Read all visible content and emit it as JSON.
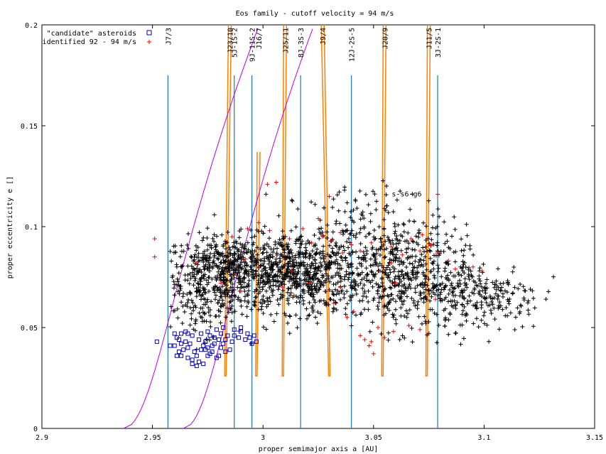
{
  "chart_data": {
    "type": "scatter",
    "title": "Eos family - cutoff velocity = 94 m/s",
    "xlabel": "proper semimajor axis a [AU]",
    "ylabel": "proper eccentricity e []",
    "xlim": [
      2.9,
      3.15
    ],
    "ylim": [
      0,
      0.2
    ],
    "x_ticks": [
      {
        "v": 2.9,
        "label": "2.9"
      },
      {
        "v": 2.95,
        "label": "2.95"
      },
      {
        "v": 3.0,
        "label": "3"
      },
      {
        "v": 3.05,
        "label": "3.05"
      },
      {
        "v": 3.1,
        "label": "3.1"
      },
      {
        "v": 3.15,
        "label": "3.15"
      }
    ],
    "y_ticks": [
      {
        "v": 0,
        "label": "0"
      },
      {
        "v": 0.05,
        "label": "0.05"
      },
      {
        "v": 0.1,
        "label": "0.1"
      },
      {
        "v": 0.15,
        "label": "0.15"
      },
      {
        "v": 0.2,
        "label": "0.2"
      }
    ],
    "legend_position": "top-left",
    "series": [
      {
        "name": "\"candidate\" asteroids",
        "marker": "square",
        "color": "#0000cc",
        "points": [
          [
            2.952,
            0.043
          ],
          [
            2.961,
            0.045
          ],
          [
            2.963,
            0.047
          ],
          [
            2.965,
            0.048
          ],
          [
            2.968,
            0.046
          ],
          [
            2.972,
            0.047
          ],
          [
            2.975,
            0.048
          ],
          [
            2.978,
            0.045
          ],
          [
            2.981,
            0.047
          ],
          [
            2.984,
            0.046
          ],
          [
            2.96,
            0.041
          ],
          [
            2.962,
            0.038
          ],
          [
            2.963,
            0.036
          ],
          [
            2.966,
            0.04
          ],
          [
            2.968,
            0.034
          ],
          [
            2.97,
            0.031
          ],
          [
            2.972,
            0.039
          ],
          [
            2.974,
            0.043
          ],
          [
            2.976,
            0.037
          ],
          [
            2.977,
            0.041
          ],
          [
            2.979,
            0.035
          ],
          [
            2.981,
            0.04
          ],
          [
            2.983,
            0.038
          ],
          [
            2.965,
            0.043
          ],
          [
            2.969,
            0.038
          ],
          [
            2.973,
            0.032
          ],
          [
            2.975,
            0.036
          ],
          [
            2.971,
            0.044
          ],
          [
            2.967,
            0.042
          ],
          [
            2.978,
            0.042
          ],
          [
            2.98,
            0.044
          ],
          [
            2.982,
            0.042
          ],
          [
            2.985,
            0.039
          ],
          [
            2.987,
            0.046
          ],
          [
            2.99,
            0.048
          ],
          [
            2.993,
            0.047
          ],
          [
            2.994,
            0.045
          ],
          [
            2.996,
            0.046
          ],
          [
            2.964,
            0.039
          ],
          [
            2.962,
            0.044
          ],
          [
            2.966,
            0.035
          ],
          [
            2.97,
            0.036
          ],
          [
            2.974,
            0.039
          ],
          [
            2.976,
            0.046
          ],
          [
            2.98,
            0.036
          ],
          [
            2.983,
            0.044
          ],
          [
            2.961,
            0.036
          ],
          [
            2.968,
            0.032
          ],
          [
            2.973,
            0.041
          ],
          [
            2.977,
            0.038
          ],
          [
            2.986,
            0.043
          ],
          [
            2.989,
            0.045
          ],
          [
            2.992,
            0.044
          ],
          [
            2.995,
            0.042
          ],
          [
            2.997,
            0.043
          ],
          [
            2.979,
            0.049
          ],
          [
            2.982,
            0.05
          ],
          [
            2.987,
            0.049
          ],
          [
            2.99,
            0.05
          ],
          [
            2.971,
            0.033
          ],
          [
            2.975,
            0.04
          ],
          [
            2.966,
            0.047
          ],
          [
            2.958,
            0.041
          ],
          [
            2.96,
            0.047
          ],
          [
            2.963,
            0.042
          ]
        ]
      },
      {
        "name": "identified 92 - 94 m/s",
        "marker": "plus",
        "color": "#ff0000",
        "points": [
          [
            2.951,
            0.094
          ],
          [
            2.951,
            0.085
          ],
          [
            2.986,
            0.095
          ],
          [
            2.993,
            0.099
          ],
          [
            2.998,
            0.102
          ],
          [
            3.002,
            0.121
          ],
          [
            3.006,
            0.122
          ],
          [
            3.003,
            0.098
          ],
          [
            3.012,
            0.094
          ],
          [
            3.018,
            0.099
          ],
          [
            3.022,
            0.092
          ],
          [
            3.027,
            0.095
          ],
          [
            3.031,
            0.093
          ],
          [
            3.035,
            0.097
          ],
          [
            3.04,
            0.091
          ],
          [
            3.044,
            0.088
          ],
          [
            3.049,
            0.092
          ],
          [
            3.053,
            0.078
          ],
          [
            3.058,
            0.082
          ],
          [
            3.063,
            0.086
          ],
          [
            3.067,
            0.094
          ],
          [
            3.071,
            0.088
          ],
          [
            3.076,
            0.091
          ],
          [
            3.079,
            0.087
          ],
          [
            3.084,
            0.083
          ],
          [
            3.087,
            0.079
          ],
          [
            3.095,
            0.08
          ],
          [
            3.099,
            0.078
          ],
          [
            3.032,
            0.062
          ],
          [
            3.041,
            0.058
          ],
          [
            3.044,
            0.046
          ],
          [
            3.046,
            0.044
          ],
          [
            3.048,
            0.041
          ],
          [
            3.05,
            0.037
          ],
          [
            3.049,
            0.043
          ],
          [
            3.052,
            0.05
          ],
          [
            3.055,
            0.045
          ],
          [
            3.059,
            0.048
          ],
          [
            3.066,
            0.051
          ],
          [
            3.071,
            0.049
          ],
          [
            3.038,
            0.055
          ],
          [
            3.028,
            0.068
          ],
          [
            3.021,
            0.072
          ],
          [
            3.014,
            0.066
          ],
          [
            3.009,
            0.07
          ],
          [
            2.998,
            0.08
          ],
          [
            2.992,
            0.084
          ],
          [
            2.987,
            0.076
          ],
          [
            2.981,
            0.072
          ],
          [
            2.976,
            0.078
          ],
          [
            2.97,
            0.082
          ],
          [
            2.99,
            0.068
          ],
          [
            3.03,
            0.115
          ],
          [
            3.079,
            0.116
          ],
          [
            3.013,
            0.078
          ],
          [
            3.035,
            0.07
          ],
          [
            3.06,
            0.072
          ],
          [
            3.078,
            0.064
          ],
          [
            3.072,
            0.096
          ],
          [
            3.058,
            0.09
          ],
          [
            3.025,
            0.104
          ],
          [
            3.036,
            0.087
          ]
        ]
      },
      {
        "name": "",
        "marker": "plus",
        "color": "#000000",
        "clusters": [
          {
            "cx": 2.985,
            "cy": 0.078,
            "sx": 0.016,
            "sy": 0.0085,
            "n": 640
          },
          {
            "cx": 3.018,
            "cy": 0.077,
            "sx": 0.013,
            "sy": 0.0095,
            "n": 540
          },
          {
            "cx": 3.062,
            "cy": 0.075,
            "sx": 0.015,
            "sy": 0.013,
            "n": 500
          },
          {
            "cx": 3.098,
            "cy": 0.066,
            "sx": 0.014,
            "sy": 0.009,
            "n": 240
          },
          {
            "cx": 3.045,
            "cy": 0.096,
            "sx": 0.018,
            "sy": 0.013,
            "n": 170
          },
          {
            "cx": 2.972,
            "cy": 0.06,
            "sx": 0.01,
            "sy": 0.007,
            "n": 110
          }
        ]
      }
    ],
    "resonance_lines": [
      {
        "label": "J7/3",
        "a": 2.957,
        "e_top": 0.175
      },
      {
        "label": "5J-1S-2",
        "a": 2.987,
        "e_top": 0.175
      },
      {
        "label": "9J-11S-2",
        "a": 2.995,
        "e_top": 0.175
      },
      {
        "label": "8J-3S-3",
        "a": 3.017,
        "e_top": 0.175
      },
      {
        "label": "12J-2S-5",
        "a": 3.04,
        "e_top": 0.175
      },
      {
        "label": "3J-2S-1",
        "a": 3.079,
        "e_top": 0.175
      }
    ],
    "resonance_v": [
      {
        "label": "J23/10",
        "a_top": 2.985,
        "a_bottom": 2.983
      },
      {
        "label": "J16/7",
        "a_top": 2.998,
        "a_bottom": 2.997,
        "e_top": 0.137
      },
      {
        "label": "J25/11",
        "a_top": 3.01,
        "a_bottom": 3.009
      },
      {
        "label": "J9/4",
        "a_top": 3.027,
        "a_bottom": 3.03
      },
      {
        "label": "J20/9",
        "a_top": 3.055,
        "a_bottom": 3.054
      },
      {
        "label": "J11/5",
        "a_top": 3.075,
        "a_bottom": 3.074
      }
    ],
    "annotation": "s-s6-g6",
    "annotation_at": [
      3.065,
      0.115
    ],
    "secular_color": "#bb00ee",
    "resonance_color_1": "#1f77b4",
    "resonance_color_2": "#ff7f00"
  }
}
